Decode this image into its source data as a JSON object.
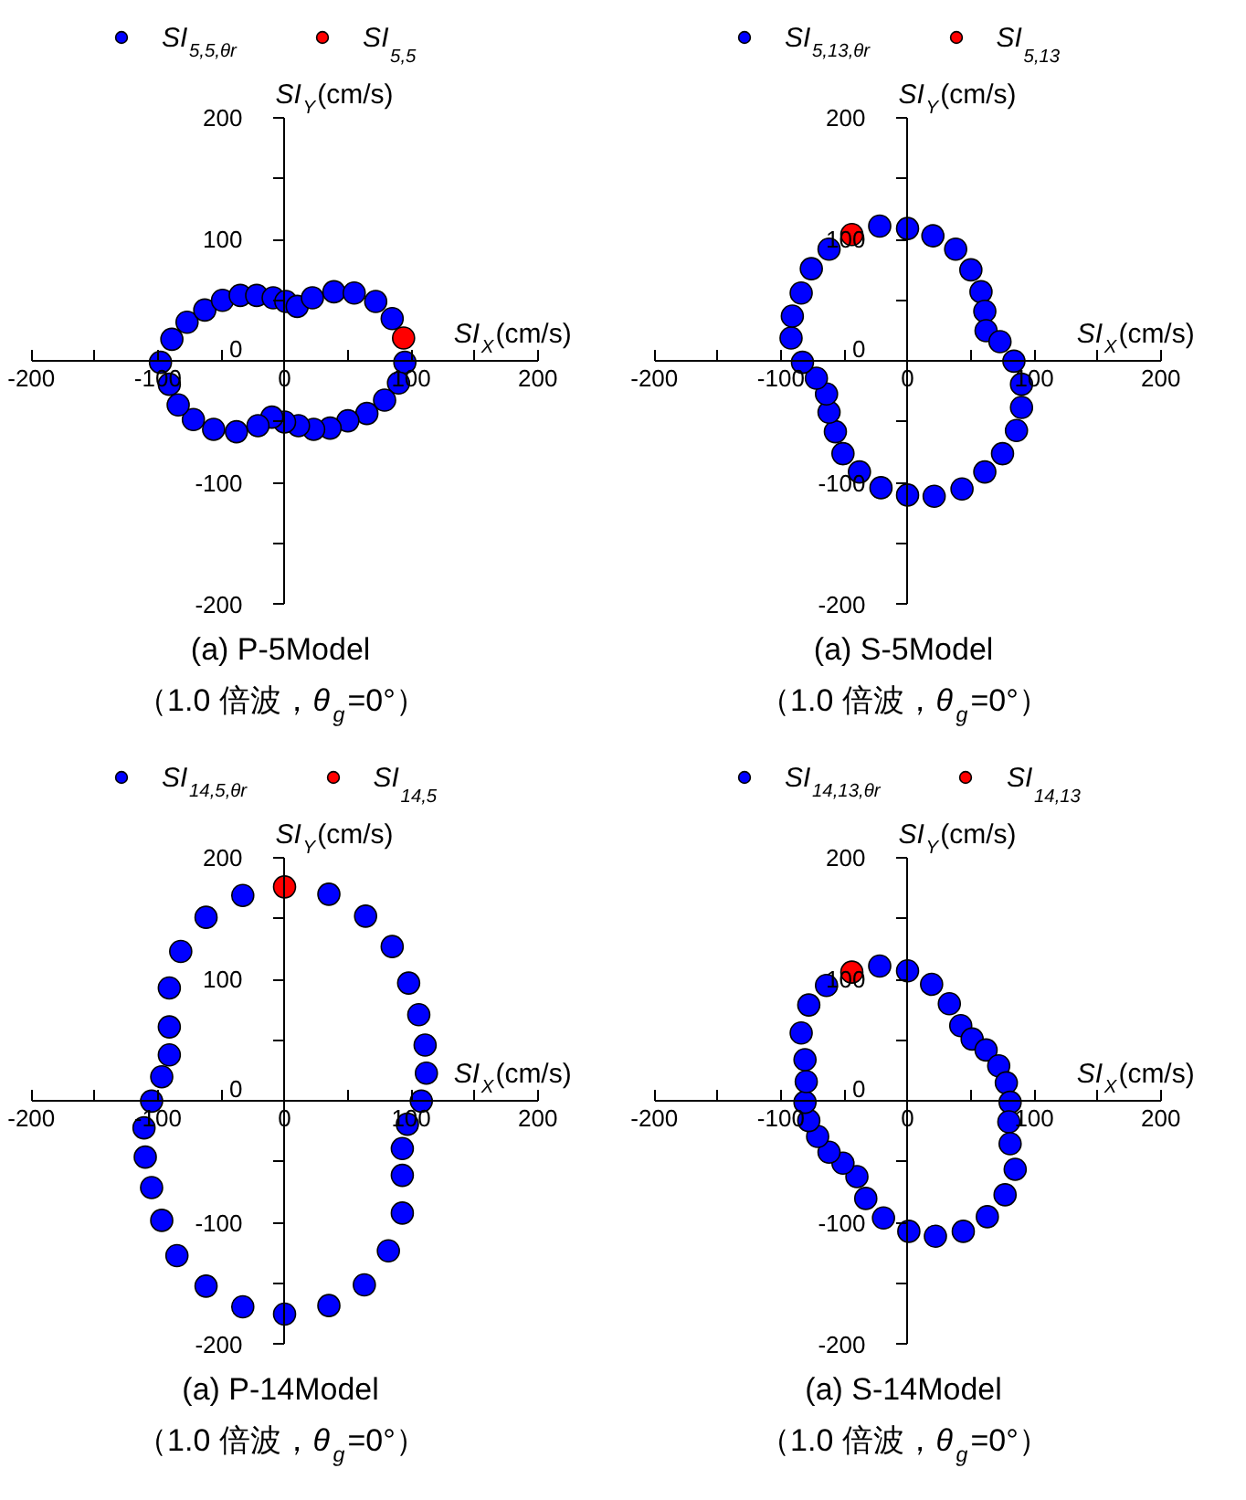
{
  "chart_data": [
    {
      "type": "scatter",
      "title": "(a) P-5Model",
      "subtitle": "（1.0 倍波，θ$_{g}$=0°）",
      "xlabel": "SI$_{X}$(cm/s)",
      "ylabel": "SI$_{Y}$(cm/s)",
      "xlim": [
        -200,
        200
      ],
      "ylim": [
        -200,
        200
      ],
      "xticks": [
        -200,
        {
          "value": -150,
          "label": null
        },
        -100,
        {
          "value": -50,
          "label": null
        },
        0,
        {
          "value": 50,
          "label": null
        },
        100,
        {
          "value": 150,
          "label": null
        },
        200
      ],
      "yticks": [
        -200,
        {
          "value": -150,
          "label": null
        },
        -100,
        {
          "value": -50,
          "label": null
        },
        0,
        {
          "value": 50,
          "label": null
        },
        100,
        {
          "value": 150,
          "label": null
        },
        200
      ],
      "grid": false,
      "legend": "top",
      "marker": "circle",
      "series": [
        {
          "name": "SI$_{5,5,θr}$",
          "color": "#0000ff",
          "x": [
            -98,
            -89,
            -77,
            -63,
            -49,
            -35,
            -22,
            -9,
            1,
            10,
            22,
            39,
            55,
            72,
            85,
            95,
            90,
            79,
            65,
            50,
            36,
            23,
            11,
            0,
            -10,
            -21,
            -38,
            -56,
            -72,
            -84,
            -91
          ],
          "values": [
            -1,
            18,
            32,
            42,
            50,
            54,
            54,
            52,
            49,
            45,
            52,
            57,
            56,
            49,
            35,
            -1,
            -18,
            -32,
            -43,
            -49,
            -55,
            -56,
            -53,
            -50,
            -46,
            -53,
            -58,
            -56,
            -48,
            -36,
            -19
          ]
        },
        {
          "name": "SI$_{5,5}$",
          "color": "#ff0000",
          "x": [
            94
          ],
          "values": [
            19
          ]
        }
      ]
    },
    {
      "type": "scatter",
      "title": "(a) S-5Model",
      "subtitle": "（1.0 倍波，θ$_{g}$=0°）",
      "xlabel": "SI$_{X}$(cm/s)",
      "ylabel": "SI$_{Y}$(cm/s)",
      "xlim": [
        -200,
        200
      ],
      "ylim": [
        -200,
        200
      ],
      "xticks": [
        -200,
        {
          "value": -150,
          "label": null
        },
        -100,
        {
          "value": -50,
          "label": null
        },
        0,
        {
          "value": 50,
          "label": null
        },
        100,
        {
          "value": 150,
          "label": null
        },
        200
      ],
      "yticks": [
        -200,
        {
          "value": -150,
          "label": null
        },
        -100,
        {
          "value": -50,
          "label": null
        },
        0,
        {
          "value": 50,
          "label": null
        },
        100,
        {
          "value": 150,
          "label": null
        },
        200
      ],
      "grid": false,
      "legend": "top",
      "marker": "circle",
      "series": [
        {
          "name": "SI$_{5,13,θr}$",
          "color": "#0000ff",
          "x": [
            -22,
            0,
            20,
            38,
            50,
            58,
            61,
            62,
            73,
            84,
            90,
            90,
            86,
            75,
            61,
            43,
            21,
            0,
            -21,
            -38,
            -51,
            -57,
            -62,
            -64,
            -72,
            -83,
            -92,
            -91,
            -84,
            -76,
            -62
          ],
          "values": [
            111,
            109,
            103,
            92,
            75,
            57,
            41,
            25,
            16,
            0,
            -19,
            -38,
            -57,
            -76,
            -91,
            -105,
            -111,
            -110,
            -104,
            -91,
            -76,
            -58,
            -42,
            -27,
            -14,
            -1,
            19,
            37,
            56,
            76,
            92
          ]
        },
        {
          "name": "SI$_{5,13}$",
          "color": "#ff0000",
          "x": [
            -44
          ],
          "values": [
            104
          ]
        }
      ]
    },
    {
      "type": "scatter",
      "title": "(a) P-14Model",
      "subtitle": "（1.0 倍波，θ$_{g}$=0°）",
      "xlabel": "SI$_{X}$(cm/s)",
      "ylabel": "SI$_{Y}$(cm/s)",
      "xlim": [
        -200,
        200
      ],
      "ylim": [
        -200,
        200
      ],
      "xticks": [
        -200,
        {
          "value": -150,
          "label": null
        },
        -100,
        {
          "value": -50,
          "label": null
        },
        0,
        {
          "value": 50,
          "label": null
        },
        100,
        {
          "value": 150,
          "label": null
        },
        200
      ],
      "yticks": [
        -200,
        {
          "value": -150,
          "label": null
        },
        -100,
        {
          "value": -50,
          "label": null
        },
        0,
        {
          "value": 50,
          "label": null
        },
        100,
        {
          "value": 150,
          "label": null
        },
        200
      ],
      "grid": false,
      "legend": "top",
      "marker": "circle",
      "series": [
        {
          "name": "SI$_{14,5,θr}$",
          "color": "#0000ff",
          "x": [
            -33,
            -62,
            -82,
            -91,
            -91,
            -91,
            -97,
            -105,
            -111,
            -110,
            -105,
            -97,
            -85,
            -62,
            -33,
            0,
            35,
            63,
            82,
            93,
            93,
            93,
            97,
            108,
            112,
            111,
            106,
            98,
            85,
            64,
            35
          ],
          "values": [
            169,
            151,
            123,
            93,
            61,
            38,
            20,
            0,
            -22,
            -46,
            -71,
            -98,
            -127,
            -152,
            -169,
            -175,
            -168,
            -151,
            -123,
            -92,
            -61,
            -39,
            -19,
            0,
            23,
            46,
            71,
            97,
            127,
            152,
            170
          ]
        },
        {
          "name": "SI$_{14,5}$",
          "color": "#ff0000",
          "x": [
            0
          ],
          "values": [
            176
          ]
        }
      ]
    },
    {
      "type": "scatter",
      "title": "(a) S-14Model",
      "subtitle": "（1.0 倍波，θ$_{g}$=0°）",
      "xlabel": "SI$_{X}$(cm/s)",
      "ylabel": "SI$_{Y}$(cm/s)",
      "xlim": [
        -200,
        200
      ],
      "ylim": [
        -200,
        200
      ],
      "xticks": [
        -200,
        {
          "value": -150,
          "label": null
        },
        -100,
        {
          "value": -50,
          "label": null
        },
        0,
        {
          "value": 50,
          "label": null
        },
        100,
        {
          "value": 150,
          "label": null
        },
        200
      ],
      "yticks": [
        -200,
        {
          "value": -150,
          "label": null
        },
        -100,
        {
          "value": -50,
          "label": null
        },
        0,
        {
          "value": 50,
          "label": null
        },
        100,
        {
          "value": 150,
          "label": null
        },
        200
      ],
      "grid": false,
      "legend": "top",
      "marker": "circle",
      "series": [
        {
          "name": "SI$_{14,13,θr}$",
          "color": "#0000ff",
          "x": [
            -22,
            0,
            19,
            33,
            42,
            51,
            62,
            72,
            78,
            81,
            80,
            81,
            85,
            77,
            63,
            44,
            22,
            1,
            -19,
            -33,
            -40,
            -51,
            -62,
            -71,
            -78,
            -81,
            -80,
            -81,
            -84,
            -78,
            -64
          ],
          "values": [
            111,
            107,
            96,
            80,
            62,
            51,
            42,
            29,
            15,
            -1,
            -17,
            -35,
            -56,
            -77,
            -95,
            -107,
            -111,
            -107,
            -96,
            -80,
            -62,
            -51,
            -42,
            -29,
            -16,
            -1,
            16,
            34,
            56,
            79,
            95
          ]
        },
        {
          "name": "SI$_{14,13}$",
          "color": "#ff0000",
          "x": [
            -44
          ],
          "values": [
            106
          ]
        }
      ]
    }
  ]
}
